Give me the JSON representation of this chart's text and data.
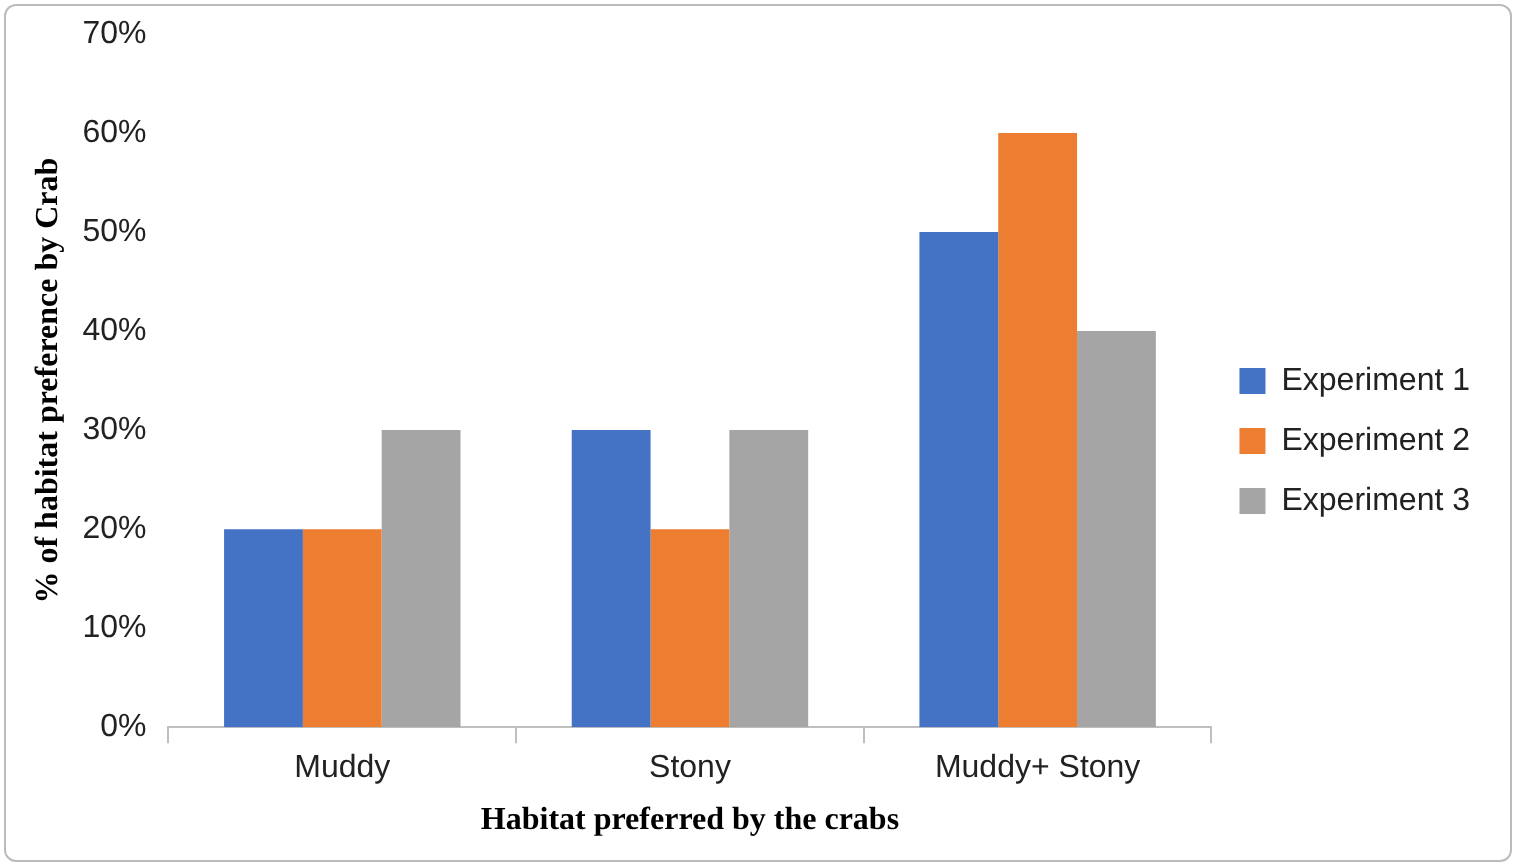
{
  "chart_data": {
    "type": "bar",
    "xlabel": "Habitat preferred by the crabs",
    "ylabel": "% of habitat preference by Crab",
    "categories": [
      "Muddy",
      "Stony",
      "Muddy+ Stony"
    ],
    "series": [
      {
        "name": "Experiment 1",
        "color": "#4472c4",
        "values": [
          20,
          30,
          50
        ]
      },
      {
        "name": "Experiment 2",
        "color": "#ed7d31",
        "values": [
          20,
          20,
          60
        ]
      },
      {
        "name": "Experiment 3",
        "color": "#a5a5a5",
        "values": [
          30,
          30,
          40
        ]
      }
    ],
    "ylim": [
      0,
      70
    ],
    "yticks": [
      {
        "value": 0,
        "label": "0%"
      },
      {
        "value": 10,
        "label": "10%"
      },
      {
        "value": 20,
        "label": "20%"
      },
      {
        "value": 30,
        "label": "30%"
      },
      {
        "value": 40,
        "label": "40%"
      },
      {
        "value": 50,
        "label": "50%"
      },
      {
        "value": 60,
        "label": "60%"
      },
      {
        "value": 70,
        "label": "70%"
      }
    ],
    "grid": false,
    "legend": "right"
  }
}
